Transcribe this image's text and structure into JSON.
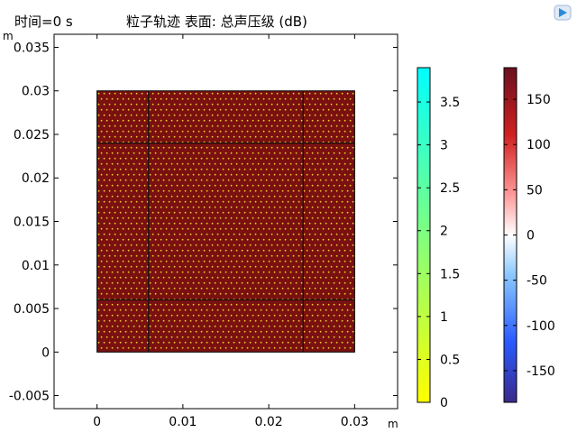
{
  "header": {
    "time_label": "时间=0 s",
    "title": "粒子轨迹  表面: 总声压级 (dB)"
  },
  "toolbar": {
    "icon": "play-button-icon"
  },
  "chart_data": {
    "type": "heatmap",
    "title": "粒子轨迹  表面: 总声压级 (dB)",
    "xlabel": "m",
    "ylabel": "m",
    "xlim": [
      -0.005,
      0.035
    ],
    "ylim": [
      -0.0065,
      0.0365
    ],
    "xticks": [
      0,
      0.01,
      0.02,
      0.03
    ],
    "xtick_labels": [
      "0",
      "0.01",
      "0.02",
      "0.03"
    ],
    "yticks": [
      -0.005,
      0,
      0.005,
      0.01,
      0.015,
      0.02,
      0.025,
      0.03,
      0.035
    ],
    "ytick_labels": [
      "-0.005",
      "0",
      "0.005",
      "0.01",
      "0.015",
      "0.02",
      "0.025",
      "0.03",
      "0.035"
    ],
    "domain": {
      "x": [
        0,
        0.03
      ],
      "y": [
        0,
        0.03
      ],
      "fill_color": "#7a1010"
    },
    "partition_lines": {
      "x": [
        0.006,
        0.024
      ],
      "y": [
        0.006,
        0.024
      ]
    },
    "particles": {
      "color": "#e8d02a",
      "description": "particle positions"
    },
    "colorbars": [
      {
        "name": "particle-colorbar",
        "range": [
          0,
          3.9
        ],
        "ticks": [
          0,
          0.5,
          1,
          1.5,
          2,
          2.5,
          3,
          3.5
        ],
        "tick_labels": [
          "0",
          "0.5",
          "1",
          "1.5",
          "2",
          "2.5",
          "3",
          "3.5"
        ],
        "colors": [
          "#ffff00",
          "#00ffff"
        ]
      },
      {
        "name": "spl-colorbar",
        "range": [
          -185,
          185
        ],
        "ticks": [
          -150,
          -100,
          -50,
          0,
          50,
          100,
          150
        ],
        "tick_labels": [
          "-150",
          "-100",
          "-50",
          "0",
          "50",
          "100",
          "150"
        ],
        "colors": [
          "#3a2a8a",
          "#2a5aff",
          "#8ac8ff",
          "#ffffff",
          "#ff8a8a",
          "#d02020",
          "#6a1020"
        ]
      }
    ]
  }
}
